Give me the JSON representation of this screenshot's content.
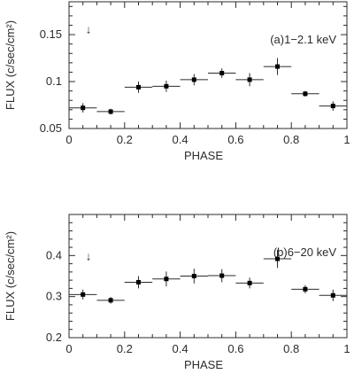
{
  "chart_data": [
    {
      "type": "scatter",
      "panel_label": "(a)1−2.1 keV",
      "arrow_marker": "↓",
      "arrow_x": 0.07,
      "arrow_y": 0.156,
      "xlabel": "PHASE",
      "ylabel": "FLUX (c/sec/cm²)",
      "xlim": [
        0,
        1
      ],
      "ylim": [
        0.05,
        0.185
      ],
      "xticks": [
        "0",
        "0.2",
        "0.4",
        "0.6",
        "0.8",
        "1"
      ],
      "yticks": [
        "0.05",
        "0.1",
        "0.15"
      ],
      "ytick_values": [
        0.05,
        0.1,
        0.15
      ],
      "x": [
        0.05,
        0.15,
        0.25,
        0.35,
        0.45,
        0.55,
        0.65,
        0.75,
        0.85,
        0.95
      ],
      "x_halfwidth": 0.05,
      "y": [
        0.072,
        0.068,
        0.094,
        0.095,
        0.102,
        0.109,
        0.102,
        0.116,
        0.087,
        0.074
      ],
      "yerr": [
        0.005,
        0.003,
        0.006,
        0.006,
        0.006,
        0.005,
        0.007,
        0.009,
        0.003,
        0.005
      ]
    },
    {
      "type": "scatter",
      "panel_label": "(b)6−20 keV",
      "arrow_marker": "↓",
      "arrow_x": 0.07,
      "arrow_y": 0.4,
      "xlabel": "PHASE",
      "ylabel": "FLUX (c/sec/cm²)",
      "xlim": [
        0,
        1
      ],
      "ylim": [
        0.2,
        0.5
      ],
      "xticks": [
        "0",
        "0.2",
        "0.4",
        "0.6",
        "0.8",
        "1"
      ],
      "yticks": [
        "0.2",
        "0.3",
        "0.4"
      ],
      "ytick_values": [
        0.2,
        0.3,
        0.4
      ],
      "x": [
        0.05,
        0.15,
        0.25,
        0.35,
        0.45,
        0.55,
        0.65,
        0.75,
        0.85,
        0.95
      ],
      "x_halfwidth": 0.05,
      "y": [
        0.305,
        0.291,
        0.335,
        0.343,
        0.35,
        0.351,
        0.333,
        0.392,
        0.318,
        0.303
      ],
      "yerr": [
        0.012,
        0.008,
        0.015,
        0.018,
        0.018,
        0.016,
        0.013,
        0.022,
        0.01,
        0.014
      ]
    }
  ]
}
